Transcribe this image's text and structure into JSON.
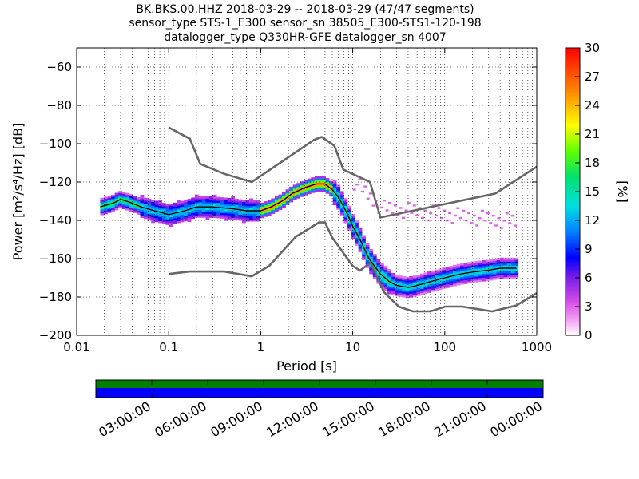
{
  "title_lines": [
    "BK.BKS.00.HHZ   2018-03-29 -- 2018-03-29  (47/47 segments)",
    "sensor_type STS-1_E300 sensor_sn 38505_E300-STS1-120-198",
    "datalogger_type Q330HR-GFE datalogger_sn 4007"
  ],
  "colors": {
    "nlnm_nhnm": "#666666",
    "mean": "#000000",
    "coverage_top": "#008000",
    "coverage_bottom": "#0000ff",
    "grid": "#000000"
  },
  "chart_data": [
    {
      "type": "heatmap",
      "xlabel": "Period [s]",
      "ylabel": "Power [m²/s⁴/Hz] [dB]",
      "xscale": "log",
      "xlim": [
        0.01,
        1000
      ],
      "ylim": [
        -200,
        -50
      ],
      "x_ticks": [
        0.01,
        0.1,
        1,
        10,
        100,
        1000
      ],
      "x_tick_labels": [
        "0.01",
        "0.1",
        "1",
        "10",
        "100",
        "1000"
      ],
      "y_ticks": [
        -200,
        -180,
        -160,
        -140,
        -120,
        -100,
        -80,
        -60
      ],
      "y_tick_labels": [
        "−200",
        "−180",
        "−160",
        "−140",
        "−120",
        "−100",
        "−80",
        "−60"
      ],
      "grid": true,
      "colorbar": {
        "label": "[%]",
        "range": [
          0,
          30
        ],
        "ticks": [
          0,
          3,
          6,
          9,
          12,
          15,
          18,
          21,
          24,
          27,
          30
        ],
        "colormap": "pqlx"
      },
      "series": [
        {
          "name": "",
          "kind": "mean",
          "x": [
            0.018,
            0.025,
            0.03,
            0.04,
            0.05,
            0.07,
            0.1,
            0.15,
            0.2,
            0.3,
            0.5,
            0.7,
            1.0,
            1.3,
            1.7,
            2.2,
            3.0,
            4.0,
            5.0,
            6.0,
            7.0,
            8.0,
            9.0,
            10.0,
            12.0,
            15.0,
            20.0,
            25.0,
            30.0,
            40.0,
            50.0,
            70.0,
            100.0,
            150.0,
            200.0,
            300.0,
            400.0,
            600.0
          ],
          "y": [
            -133,
            -131,
            -129,
            -131,
            -133,
            -135,
            -137,
            -135,
            -133,
            -133,
            -134,
            -135,
            -135,
            -133,
            -130,
            -126,
            -123,
            -121,
            -121,
            -124,
            -128,
            -133,
            -138,
            -143,
            -150,
            -160,
            -168,
            -172,
            -174,
            -175,
            -174,
            -172,
            -170,
            -168,
            -167,
            -166,
            -165,
            -165
          ]
        },
        {
          "name": "",
          "kind": "nhnm",
          "x": [
            0.1,
            0.17,
            0.22,
            0.4,
            0.8,
            3.8,
            4.6,
            6.3,
            7.9,
            15.4,
            20.0,
            354.8,
            1000.0
          ],
          "y": [
            -91.5,
            -97.4,
            -110.5,
            -115.7,
            -120.0,
            -98.0,
            -96.5,
            -101.0,
            -113.5,
            -120.0,
            -138.5,
            -126.0,
            -112.0
          ]
        },
        {
          "name": "",
          "kind": "nlnm",
          "x": [
            0.1,
            0.17,
            0.4,
            0.8,
            1.24,
            2.4,
            4.3,
            5.0,
            6.0,
            10.0,
            12.0,
            15.6,
            21.9,
            31.6,
            45.0,
            70.0,
            101.0,
            154.0,
            328.0,
            600.0,
            1000.0
          ],
          "y": [
            -168.0,
            -166.7,
            -166.7,
            -169.2,
            -163.7,
            -148.6,
            -141.1,
            -141.1,
            -149.0,
            -163.8,
            -166.2,
            -162.1,
            -177.5,
            -185.0,
            -187.5,
            -187.5,
            -185.0,
            -185.0,
            -187.5,
            -184.4,
            -178.0
          ]
        }
      ],
      "coverage": {
        "time_labels": [
          "03:00:00",
          "06:00:00",
          "09:00:00",
          "12:00:00",
          "15:00:00",
          "18:00:00",
          "21:00:00",
          "00:00:00"
        ],
        "segments": 47,
        "total_segments": 47
      }
    }
  ]
}
